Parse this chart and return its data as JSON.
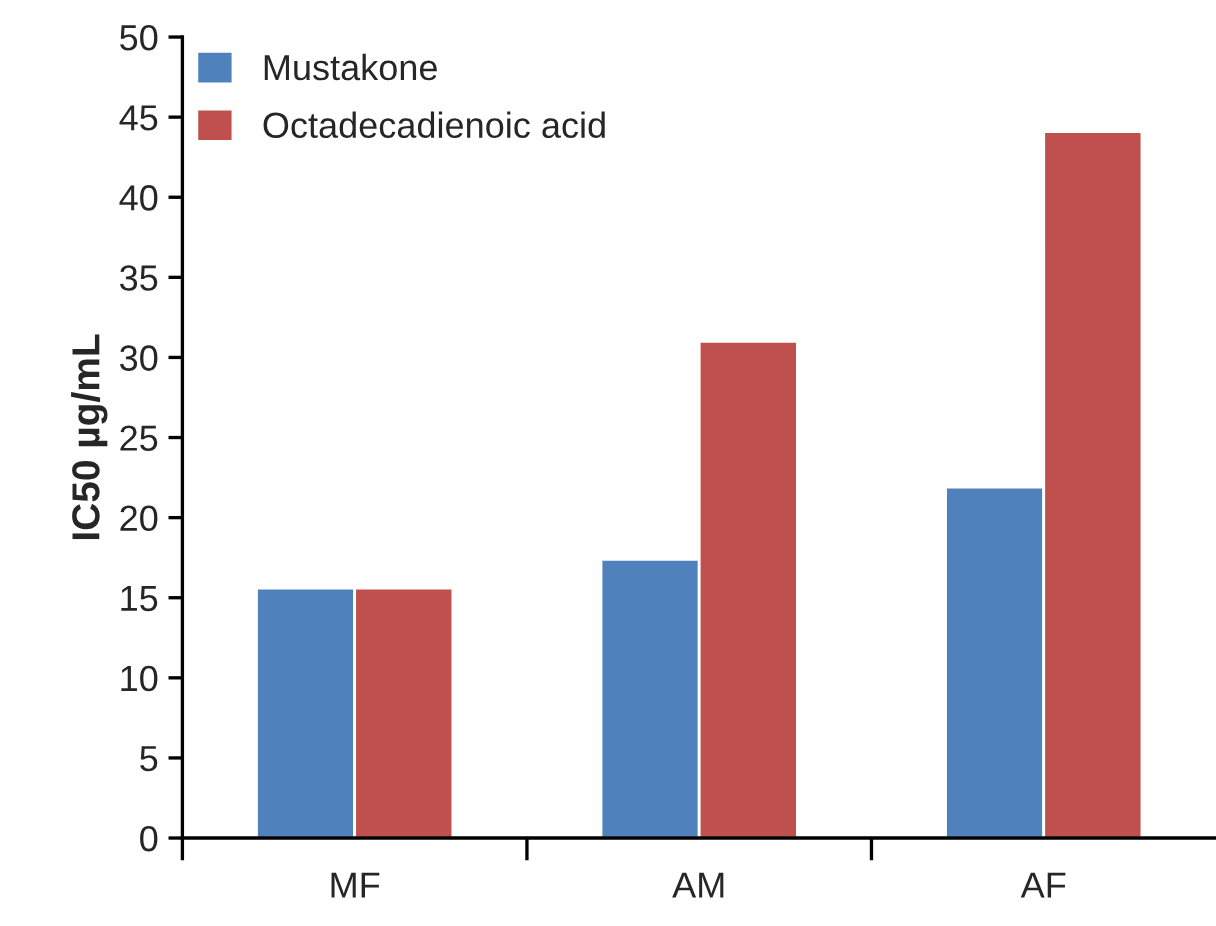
{
  "chart_data": {
    "type": "bar",
    "ylabel": "IC50 µg/mL",
    "categories": [
      "MF",
      "AM",
      "AF"
    ],
    "series": [
      {
        "name": "Mustakone",
        "color": "#4f81bd",
        "values": [
          15.6,
          17.4,
          21.9
        ]
      },
      {
        "name": "Octadecadienoic acid",
        "color": "#c0504d",
        "values": [
          15.6,
          31.0,
          44.1
        ]
      }
    ],
    "ylim": [
      0,
      50
    ],
    "yticks": [
      0,
      5,
      10,
      15,
      20,
      25,
      30,
      35,
      40,
      45,
      50
    ],
    "grid": false,
    "legend": "top left"
  }
}
